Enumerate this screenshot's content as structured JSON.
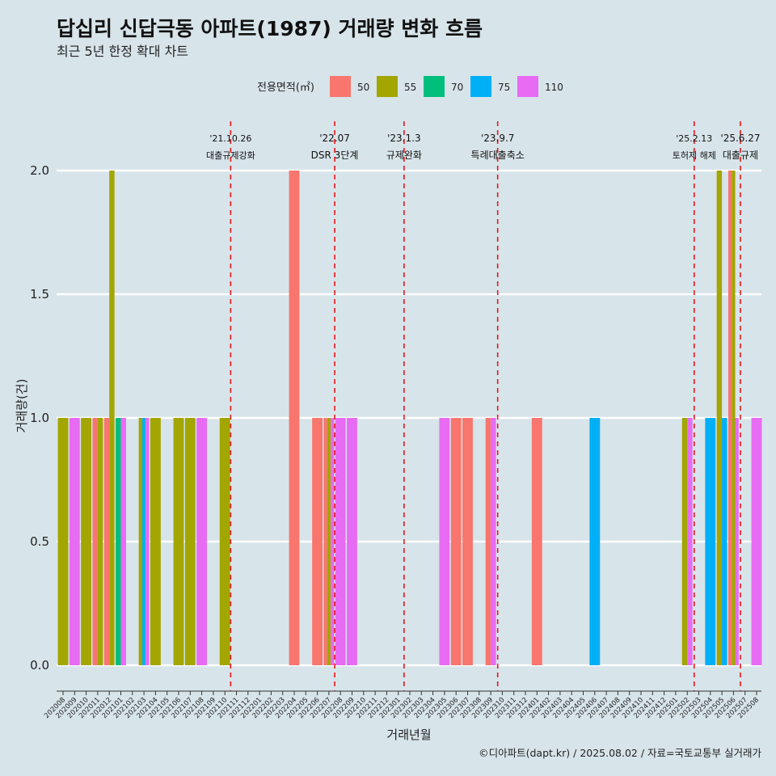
{
  "title": "답십리 신답극동 아파트(1987) 거래량 변화 흐름",
  "subtitle": "최근 5년 한정 확대 차트",
  "caption": "©디아파트(dapt.kr) / 2025.08.02 / 자료=국토교통부 실거래가",
  "legend": {
    "title": "전용면적(㎡)",
    "items": [
      {
        "label": "50",
        "color": "#f8766d"
      },
      {
        "label": "55",
        "color": "#a3a500"
      },
      {
        "label": "70",
        "color": "#00bf7d"
      },
      {
        "label": "75",
        "color": "#00b0f6"
      },
      {
        "label": "110",
        "color": "#e76bf3"
      }
    ]
  },
  "chart_data": {
    "type": "bar",
    "xlabel": "거래년월",
    "ylabel": "거래량(건)",
    "ylim": [
      -0.09,
      2.2
    ],
    "yticks": [
      "0.0",
      "0.5",
      "1.0",
      "1.5",
      "2.0"
    ],
    "legend_position": "top",
    "grid": "horizontal",
    "categories": [
      "202008",
      "202009",
      "202010",
      "202011",
      "202012",
      "202101",
      "202102",
      "202103",
      "202104",
      "202105",
      "202106",
      "202107",
      "202108",
      "202109",
      "202110",
      "202111",
      "202112",
      "202201",
      "202202",
      "202203",
      "202204",
      "202205",
      "202206",
      "202207",
      "202208",
      "202209",
      "202210",
      "202211",
      "202212",
      "202301",
      "202302",
      "202303",
      "202304",
      "202305",
      "202306",
      "202307",
      "202308",
      "202309",
      "202310",
      "202311",
      "202312",
      "202401",
      "202402",
      "202403",
      "202404",
      "202405",
      "202406",
      "202407",
      "202408",
      "202409",
      "202410",
      "202411",
      "202412",
      "202501",
      "202502",
      "202503",
      "202504",
      "202505",
      "202506",
      "202507",
      "202508"
    ],
    "bars": [
      {
        "month": "202008",
        "area": "55",
        "value": 1
      },
      {
        "month": "202009",
        "area": "110",
        "value": 1
      },
      {
        "month": "202010",
        "area": "55",
        "value": 1
      },
      {
        "month": "202011",
        "area": "50",
        "value": 1
      },
      {
        "month": "202011",
        "area": "55",
        "value": 1
      },
      {
        "month": "202012",
        "area": "50",
        "value": 1
      },
      {
        "month": "202012",
        "area": "55",
        "value": 2
      },
      {
        "month": "202101",
        "area": "70",
        "value": 1
      },
      {
        "month": "202101",
        "area": "110",
        "value": 1
      },
      {
        "month": "202103",
        "area": "55",
        "value": 1
      },
      {
        "month": "202103",
        "area": "75",
        "value": 1
      },
      {
        "month": "202103",
        "area": "110",
        "value": 1
      },
      {
        "month": "202104",
        "area": "55",
        "value": 1
      },
      {
        "month": "202106",
        "area": "55",
        "value": 1
      },
      {
        "month": "202107",
        "area": "55",
        "value": 1
      },
      {
        "month": "202108",
        "area": "110",
        "value": 1
      },
      {
        "month": "202110",
        "area": "55",
        "value": 1
      },
      {
        "month": "202204",
        "area": "50",
        "value": 2
      },
      {
        "month": "202206",
        "area": "50",
        "value": 1
      },
      {
        "month": "202207",
        "area": "50",
        "value": 1
      },
      {
        "month": "202207",
        "area": "55",
        "value": 1
      },
      {
        "month": "202207",
        "area": "110",
        "value": 1
      },
      {
        "month": "202208",
        "area": "110",
        "value": 1
      },
      {
        "month": "202209",
        "area": "110",
        "value": 1
      },
      {
        "month": "202305",
        "area": "110",
        "value": 1
      },
      {
        "month": "202306",
        "area": "50",
        "value": 1
      },
      {
        "month": "202307",
        "area": "50",
        "value": 1
      },
      {
        "month": "202309",
        "area": "50",
        "value": 1
      },
      {
        "month": "202309",
        "area": "110",
        "value": 1
      },
      {
        "month": "202401",
        "area": "50",
        "value": 1
      },
      {
        "month": "202406",
        "area": "75",
        "value": 1
      },
      {
        "month": "202502",
        "area": "55",
        "value": 1
      },
      {
        "month": "202502",
        "area": "110",
        "value": 1
      },
      {
        "month": "202504",
        "area": "75",
        "value": 1
      },
      {
        "month": "202505",
        "area": "55",
        "value": 2
      },
      {
        "month": "202505",
        "area": "75",
        "value": 1
      },
      {
        "month": "202506",
        "area": "50",
        "value": 2
      },
      {
        "month": "202506",
        "area": "55",
        "value": 2
      },
      {
        "month": "202506",
        "area": "110",
        "value": 1
      },
      {
        "month": "202508",
        "area": "110",
        "value": 1
      }
    ],
    "annotations": [
      {
        "month_index": 14.5,
        "date": "'21.10.26",
        "text": "대출규제강화"
      },
      {
        "month_index": 23.5,
        "date": "'22.07",
        "text": "DSR 3단계"
      },
      {
        "month_index": 29.5,
        "date": "'23.1.3",
        "text": "규제완화"
      },
      {
        "month_index": 37.6,
        "date": "'23.9.7",
        "text": "특례대출축소"
      },
      {
        "month_index": 54.6,
        "date": "'25.2.13",
        "text": "토허제 해제"
      },
      {
        "month_index": 58.6,
        "date": "'25.6.27",
        "text": "대출규제"
      }
    ]
  }
}
